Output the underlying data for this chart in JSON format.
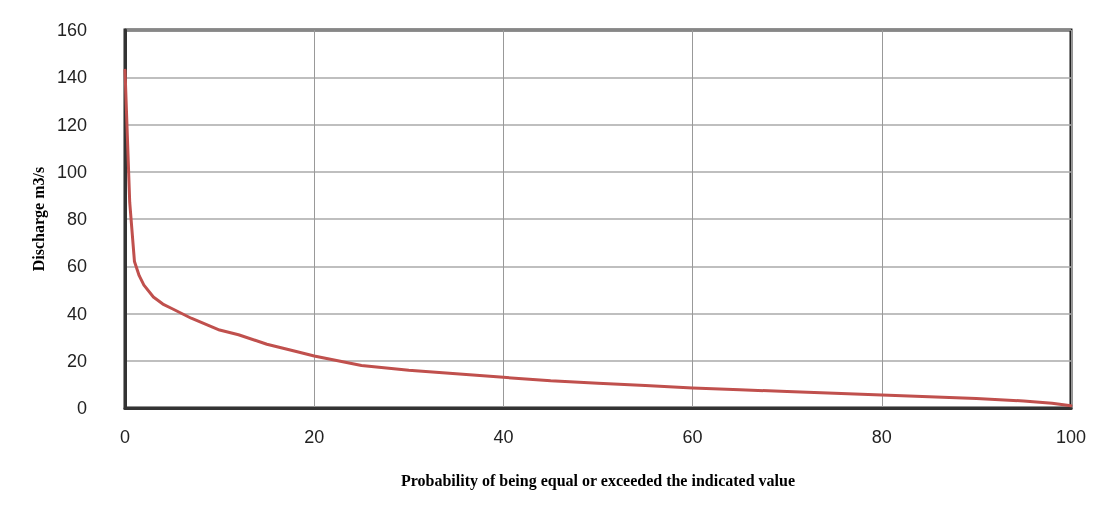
{
  "chart_data": {
    "type": "line",
    "xlabel": "Probability of being equal or exceeded the indicated value",
    "ylabel": "Discharge m3/s",
    "x": [
      0,
      0.5,
      1,
      1.5,
      2,
      3,
      4,
      5,
      7,
      10,
      12,
      15,
      18,
      20,
      25,
      30,
      35,
      40,
      45,
      50,
      55,
      60,
      65,
      70,
      75,
      80,
      85,
      90,
      95,
      98,
      100
    ],
    "series": [
      {
        "color": "#c0504d",
        "values": [
          143,
          87,
          62,
          56,
          52,
          47,
          44,
          42,
          38,
          33,
          31,
          27,
          24,
          22,
          18,
          16,
          14.5,
          13,
          11.5,
          10.5,
          9.5,
          8.5,
          7.7,
          7,
          6.2,
          5.5,
          4.8,
          4,
          3,
          2,
          1
        ]
      }
    ],
    "xlim": [
      0,
      100
    ],
    "xticks": [
      0,
      20,
      40,
      60,
      80,
      100
    ],
    "ylim": [
      0,
      160
    ],
    "yticks": [
      0,
      20,
      40,
      60,
      80,
      100,
      120,
      140,
      160
    ],
    "grid": true,
    "marker": "none",
    "line_style": "solid"
  }
}
